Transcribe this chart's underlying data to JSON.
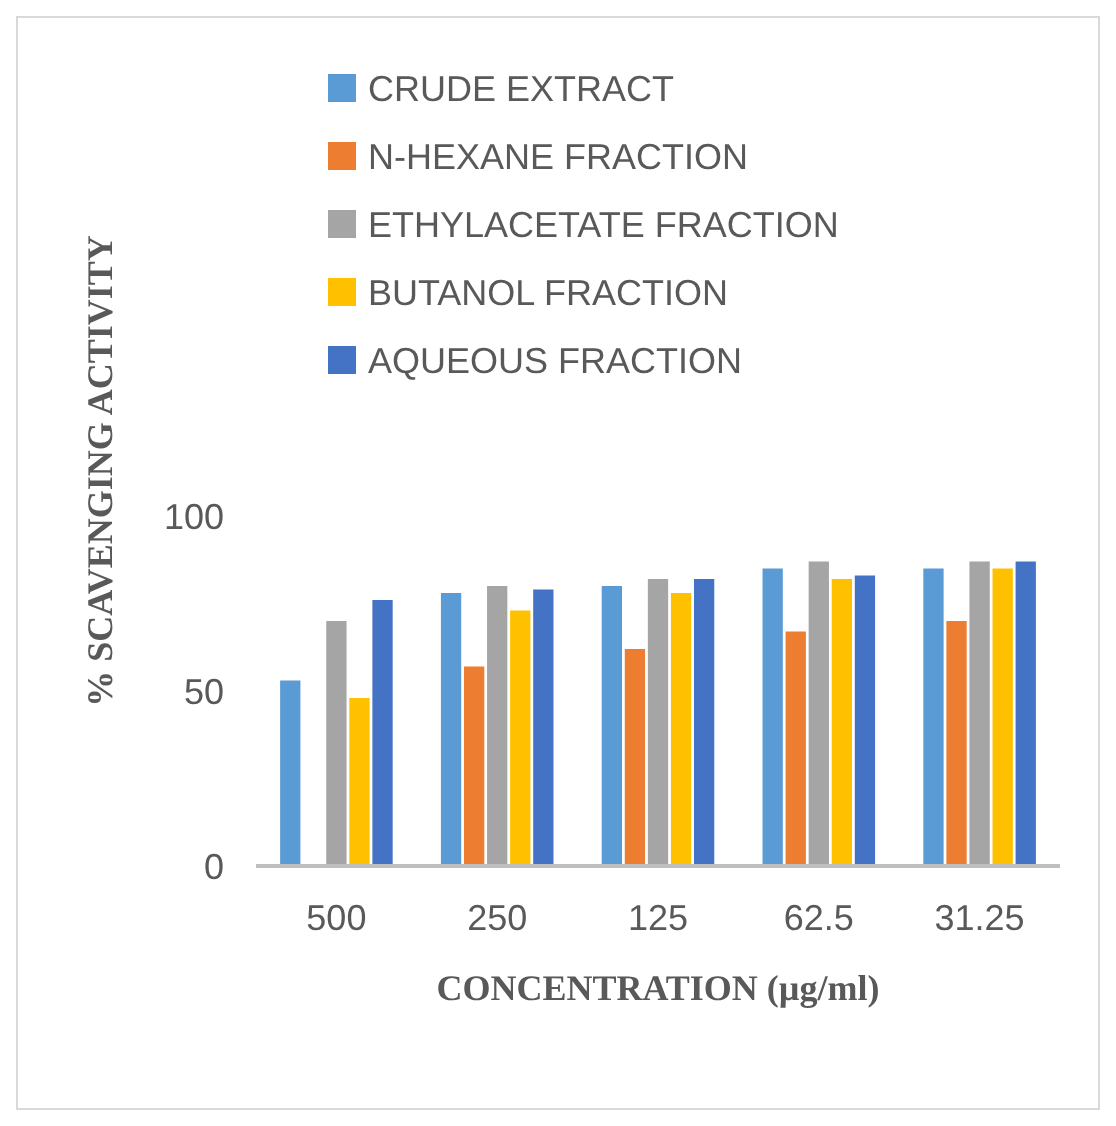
{
  "chart_data": {
    "type": "bar",
    "xlabel": "CONCENTRATION (µg/ml)",
    "ylabel": "% SCAVENGING ACTIVITY",
    "categories": [
      "500",
      "250",
      "125",
      "62.5",
      "31.25"
    ],
    "series": [
      {
        "name": "CRUDE EXTRACT",
        "color": "#5b9bd5",
        "values": [
          53,
          78,
          80,
          85,
          85
        ]
      },
      {
        "name": "N-HEXANE FRACTION",
        "color": "#ed7d31",
        "values": [
          null,
          57,
          62,
          67,
          70
        ]
      },
      {
        "name": "ETHYLACETATE FRACTION",
        "color": "#a5a5a5",
        "values": [
          70,
          80,
          82,
          87,
          87
        ]
      },
      {
        "name": "BUTANOL FRACTION",
        "color": "#ffc000",
        "values": [
          48,
          73,
          78,
          82,
          85
        ]
      },
      {
        "name": "AQUEOUS FRACTION",
        "color": "#4472c4",
        "values": [
          76,
          79,
          82,
          83,
          87
        ]
      }
    ],
    "ylim": [
      0,
      100
    ],
    "yticks": [
      0,
      50,
      100
    ],
    "grid": false,
    "legend": "top"
  }
}
